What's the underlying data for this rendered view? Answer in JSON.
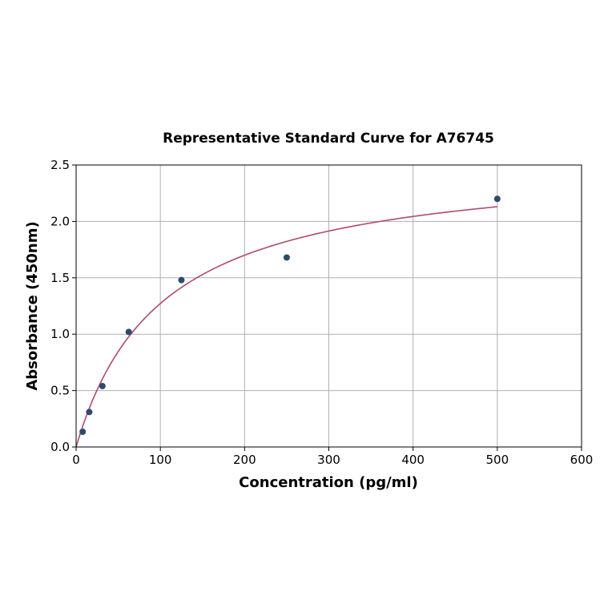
{
  "chart_data": {
    "type": "scatter",
    "title": "Representative Standard Curve for A76745",
    "xlabel": "Concentration (pg/ml)",
    "ylabel": "Absorbance (450nm)",
    "xlim": [
      0,
      600
    ],
    "ylim": [
      0,
      2.5
    ],
    "xticks": [
      "0",
      "100",
      "200",
      "300",
      "400",
      "500",
      "600"
    ],
    "yticks": [
      "0.0",
      "0.5",
      "1.0",
      "1.5",
      "2.0",
      "2.5"
    ],
    "grid": true,
    "points": {
      "x": [
        7.8,
        15.6,
        31.25,
        62.5,
        125,
        250,
        500
      ],
      "y": [
        0.135,
        0.31,
        0.54,
        1.02,
        1.48,
        1.68,
        2.2
      ]
    },
    "fit_curve": {
      "model": "hyperbolic",
      "bmax": 2.562,
      "kd": 101.4,
      "x_range": [
        0,
        500
      ]
    },
    "colors": {
      "points": "#2e4a6b",
      "curve": "#b04a6e",
      "grid": "#b0b0b0"
    }
  }
}
